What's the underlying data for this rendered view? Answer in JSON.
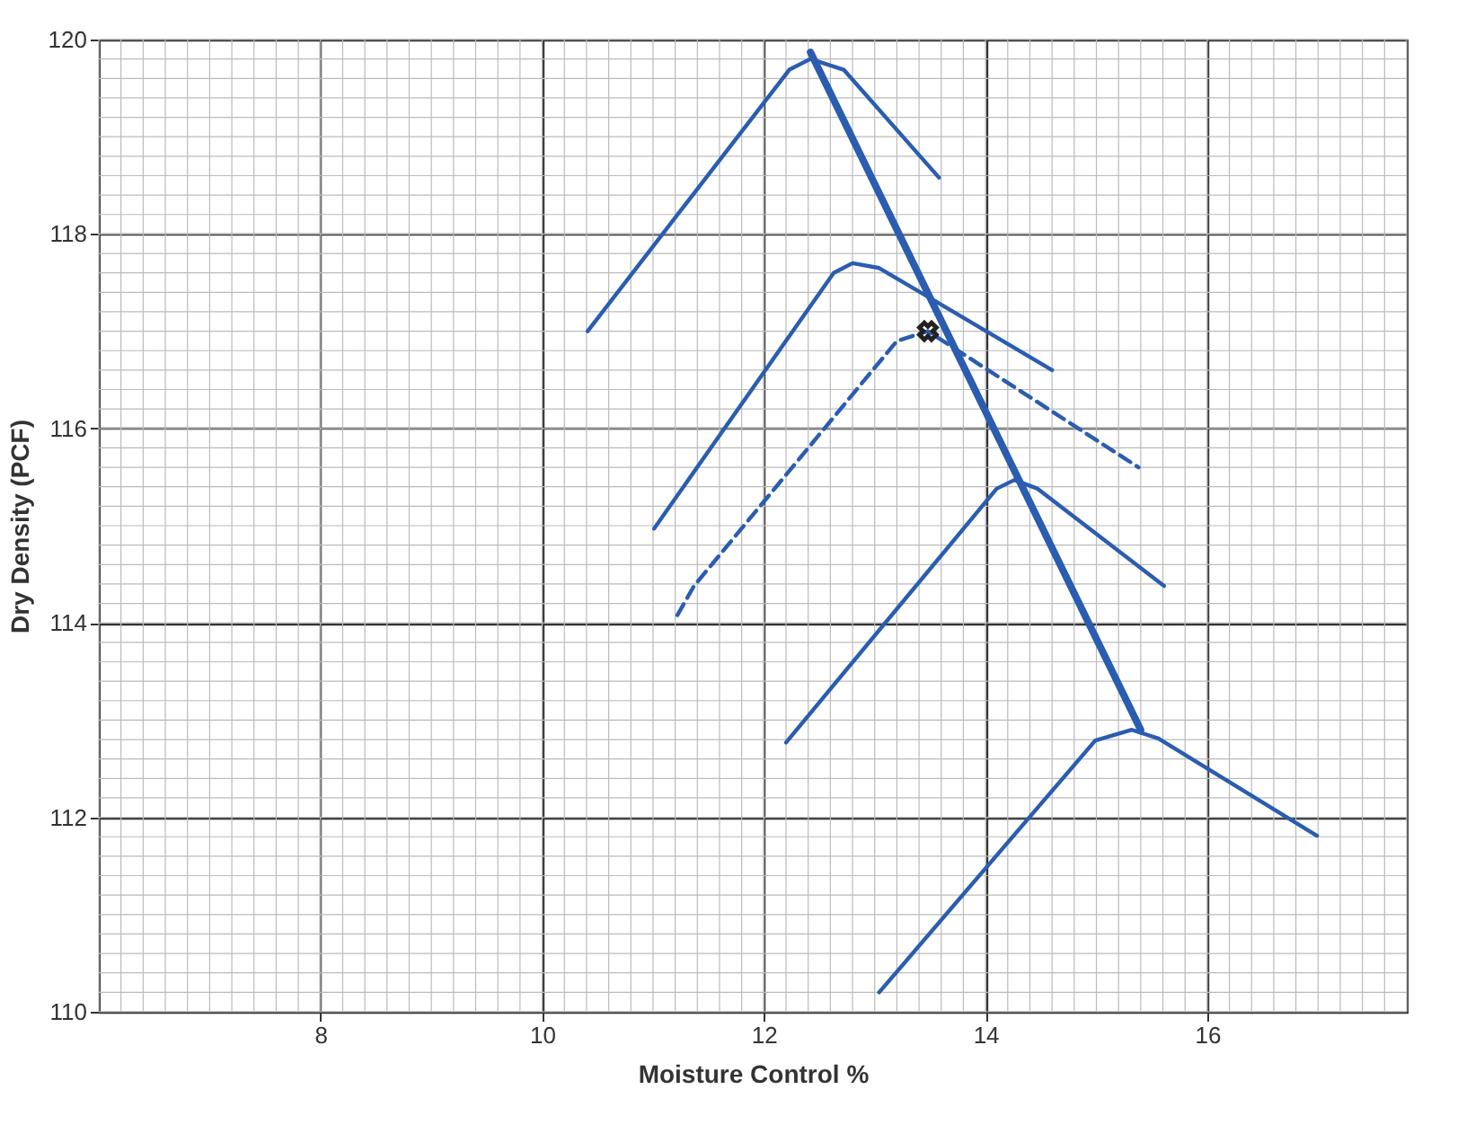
{
  "chart_data": {
    "type": "line",
    "xlabel": "Moisture Control %",
    "ylabel": "Dry Density (PCF)",
    "xlim": [
      6,
      17.8
    ],
    "ylim": [
      110,
      120
    ],
    "xticks": [
      8,
      10,
      12,
      14,
      16
    ],
    "yticks": [
      110,
      112,
      114,
      116,
      118,
      120
    ],
    "grid": true,
    "marker": "none",
    "series": [
      {
        "color": "#2a5db0",
        "x": [
          10.41,
          12.23,
          12.42,
          12.72,
          13.58
        ],
        "values": [
          117.0,
          119.69,
          119.8,
          119.69,
          118.58
        ]
      },
      {
        "color": "#2a5db0",
        "x": [
          11.01,
          12.63,
          12.8,
          13.04,
          14.6
        ],
        "values": [
          114.97,
          117.6,
          117.7,
          117.65,
          116.6
        ]
      },
      {
        "color": "#2a5db0",
        "line_style": "dashed",
        "x": [
          11.22,
          11.37,
          13.2,
          13.48,
          15.38
        ],
        "values": [
          114.08,
          114.38,
          116.9,
          117.0,
          115.6
        ]
      },
      {
        "color": "#2a5db0",
        "x": [
          12.2,
          14.1,
          14.26,
          14.47,
          15.61
        ],
        "values": [
          112.77,
          115.38,
          115.47,
          115.38,
          114.38
        ]
      },
      {
        "color": "#2a5db0",
        "x": [
          13.04,
          14.99,
          15.32,
          15.56,
          16.99
        ],
        "values": [
          110.2,
          112.79,
          112.9,
          112.81,
          111.81
        ]
      },
      {
        "color": "#2a5db0",
        "x": [
          12.42,
          15.4
        ],
        "values": [
          119.87,
          112.9
        ]
      },
      {
        "type": "scatter",
        "marker": "cross",
        "color": "#222222",
        "x": [
          13.48
        ],
        "values": [
          117.0
        ]
      }
    ]
  }
}
